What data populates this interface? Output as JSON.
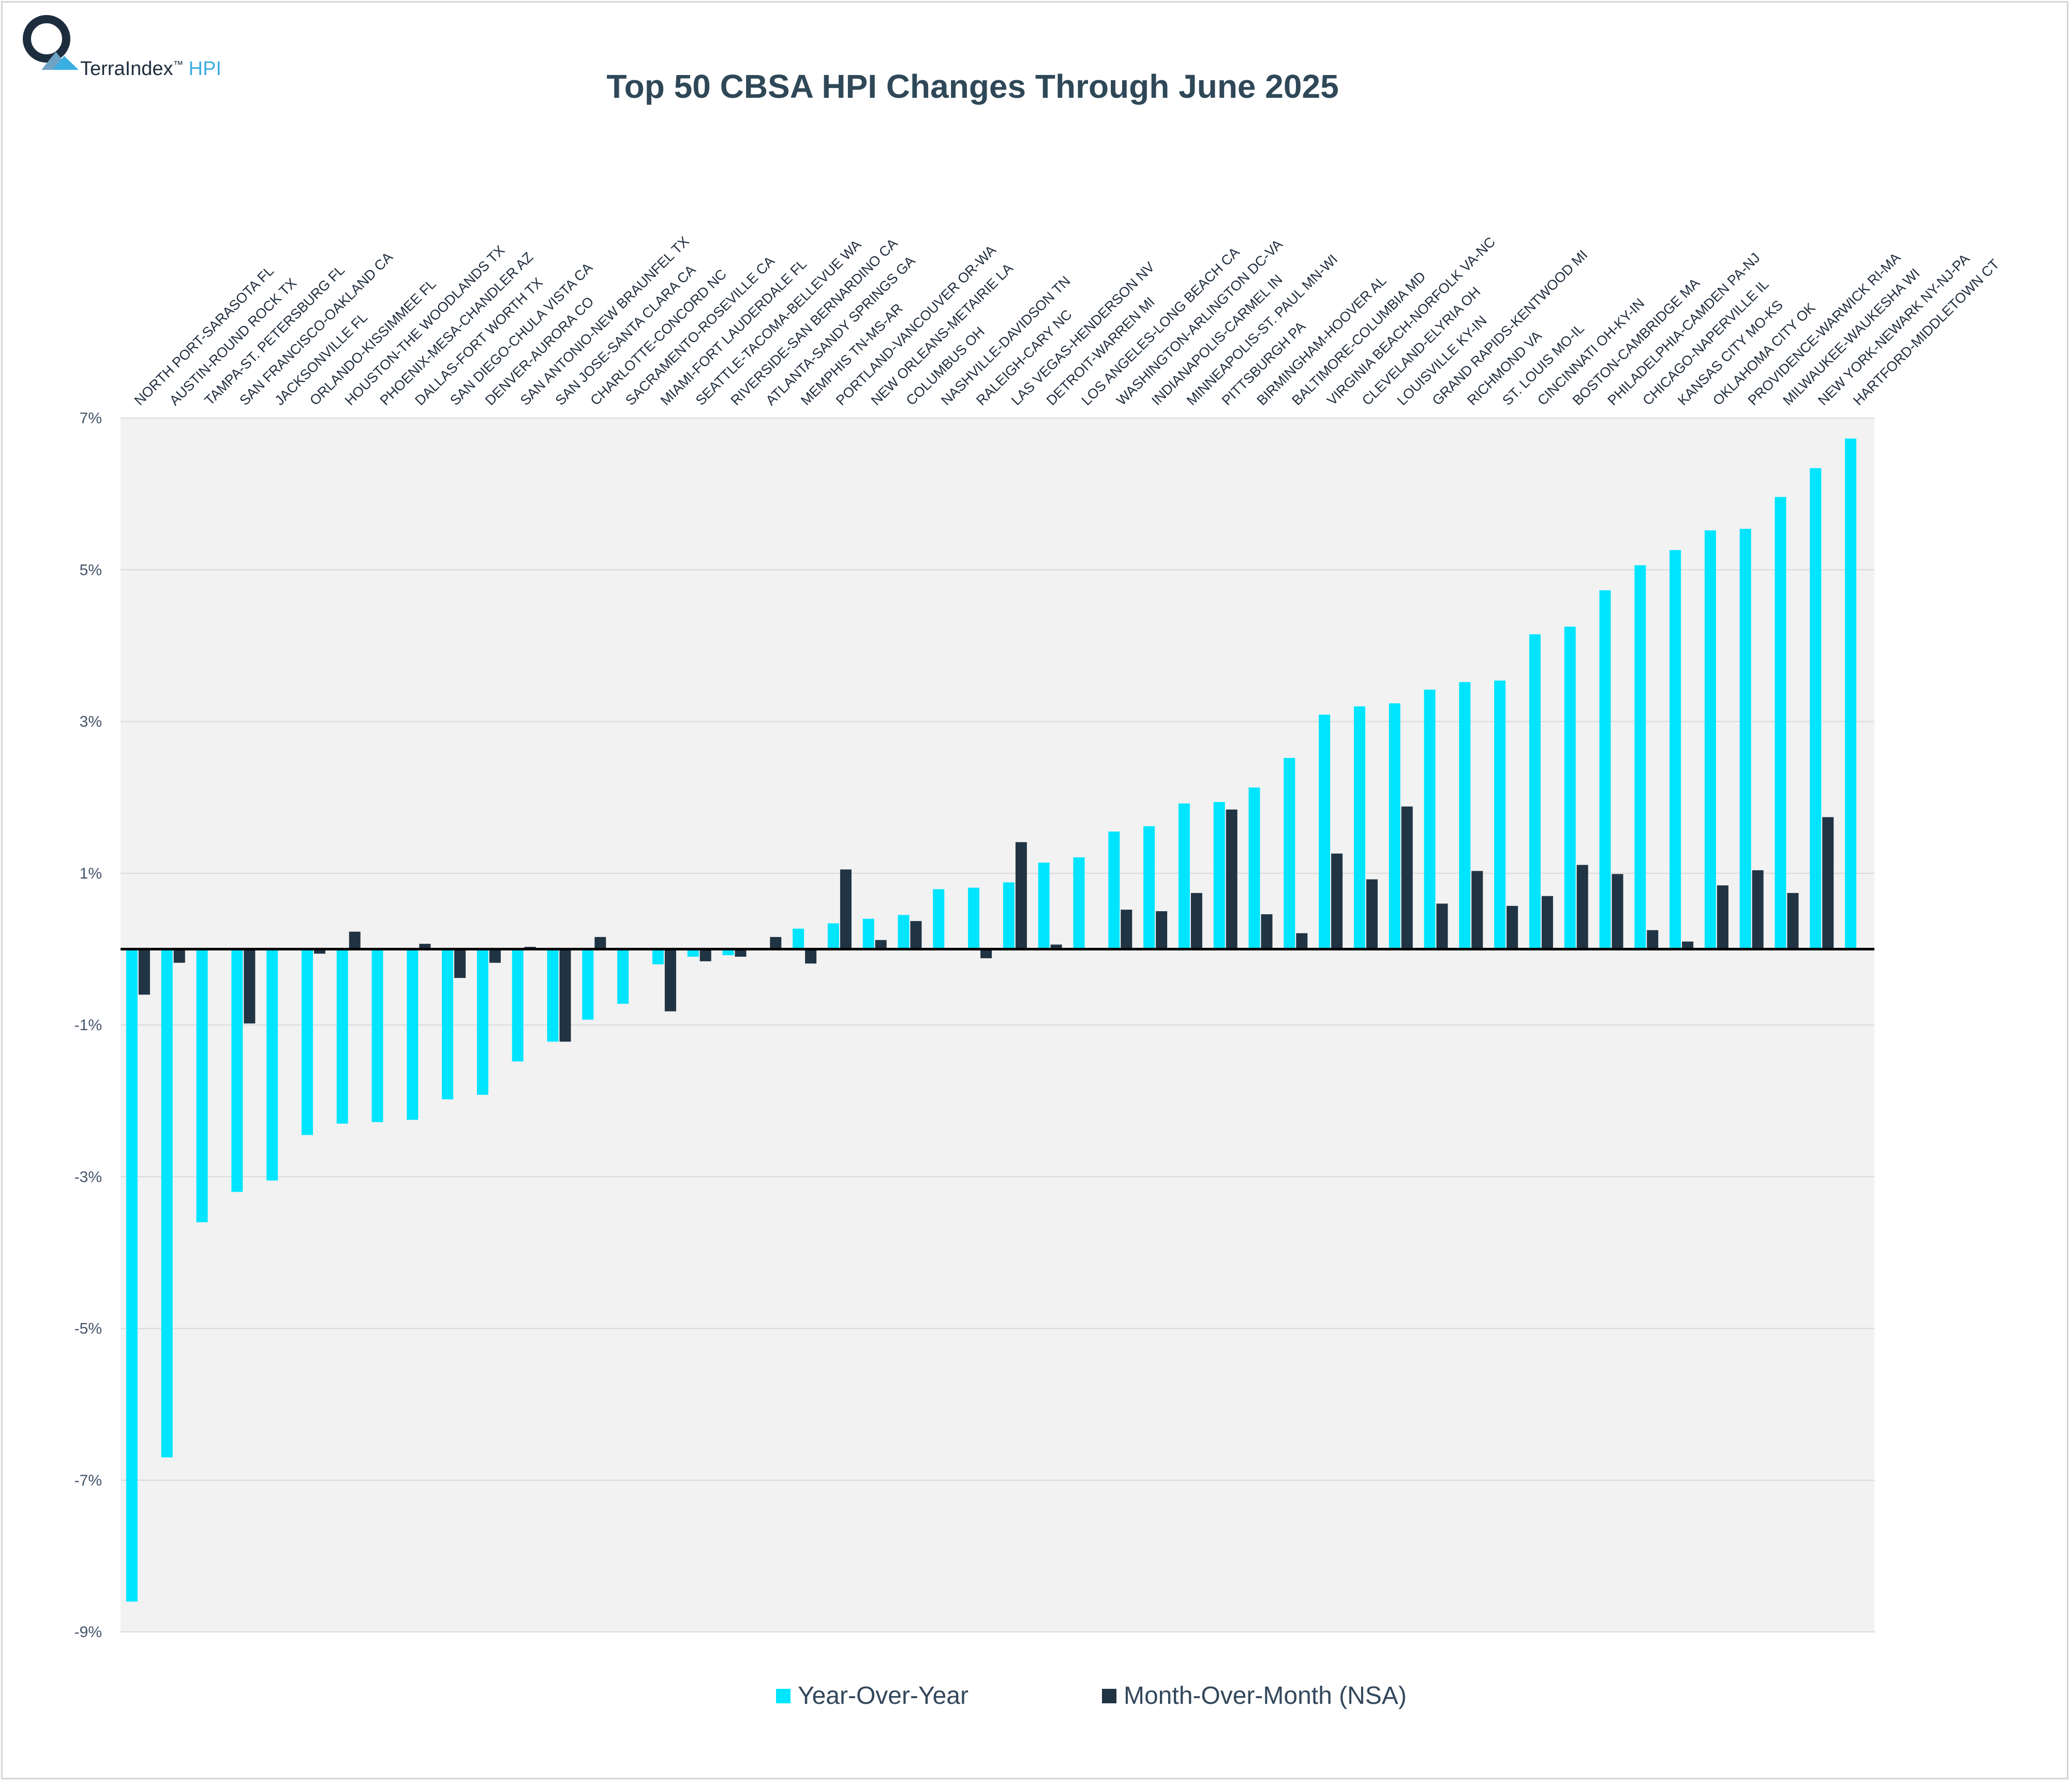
{
  "logo": {
    "brand": "TerraIndex",
    "tm": "™",
    "product": "HPI"
  },
  "colors": {
    "yoy": "#00e5ff",
    "mom": "#213444",
    "plot_bg": "#f2f2f2",
    "grid": "#d9d9d9"
  },
  "chart_data": {
    "type": "bar",
    "title": "Top 50 CBSA HPI Changes Through June 2025",
    "ylim": [
      -9,
      7
    ],
    "yticks": [
      7,
      5,
      3,
      1,
      -1,
      -3,
      -5,
      -7,
      -9
    ],
    "ytick_labels": [
      "7%",
      "5%",
      "3%",
      "1%",
      "-1%",
      "-3%",
      "-5%",
      "-7%",
      "-9%"
    ],
    "grid": true,
    "legend_position": "bottom",
    "categories": [
      "NORTH PORT-SARASOTA FL",
      "AUSTIN-ROUND ROCK TX",
      "TAMPA-ST. PETERSBURG FL",
      "SAN FRANCISCO-OAKLAND CA",
      "JACKSONVILLE FL",
      "ORLANDO-KISSIMMEE FL",
      "HOUSTON-THE WOODLANDS TX",
      "PHOENIX-MESA-CHANDLER AZ",
      "DALLAS-FORT WORTH TX",
      "SAN DIEGO-CHULA VISTA CA",
      "DENVER-AURORA CO",
      "SAN ANTONIO-NEW BRAUNFEL TX",
      "SAN JOSE-SANTA CLARA CA",
      "CHARLOTTE-CONCORD NC",
      "SACRAMENTO-ROSEVILLE CA",
      "MIAMI-FORT LAUDERDALE FL",
      "SEATTLE-TACOMA-BELLEVUE WA",
      "RIVERSIDE-SAN BERNARDINO CA",
      "ATLANTA-SANDY SPRINGS GA",
      "MEMPHIS TN-MS-AR",
      "PORTLAND-VANCOUVER OR-WA",
      "NEW ORLEANS-METAIRIE LA",
      "COLUMBUS OH",
      "NASHVILLE-DAVIDSON TN",
      "RALEIGH-CARY NC",
      "LAS VEGAS-HENDERSON NV",
      "DETROIT-WARREN MI",
      "LOS ANGELES-LONG BEACH CA",
      "WASHINGTON-ARLINGTON DC-VA",
      "INDIANAPOLIS-CARMEL IN",
      "MINNEAPOLIS-ST. PAUL MN-WI",
      "PITTSBURGH PA",
      "BIRMINGHAM-HOOVER AL",
      "BALTIMORE-COLUMBIA MD",
      "VIRGINIA BEACH-NORFOLK VA-NC",
      "CLEVELAND-ELYRIA OH",
      "LOUISVILLE KY-IN",
      "GRAND RAPIDS-KENTWOOD MI",
      "RICHMOND VA",
      "ST. LOUIS MO-IL",
      "CINCINNATI OH-KY-IN",
      "BOSTON-CAMBRIDGE MA",
      "PHILADELPHIA-CAMDEN PA-NJ",
      "CHICAGO-NAPERVILLE IL",
      "KANSAS CITY MO-KS",
      "OKLAHOMA CITY OK",
      "PROVIDENCE-WARWICK RI-MA",
      "MILWAUKEE-WAUKESHA WI",
      "NEW YORK-NEWARK NY-NJ-PA",
      "HARTFORD-MIDDLETOWN CT"
    ],
    "series": [
      {
        "name": "Year-Over-Year",
        "values": [
          -8.6,
          -6.7,
          -3.6,
          -3.2,
          -3.05,
          -2.45,
          -2.3,
          -2.28,
          -2.25,
          -1.98,
          -1.92,
          -1.48,
          -1.22,
          -0.93,
          -0.72,
          -0.2,
          -0.1,
          -0.08,
          0.0,
          0.27,
          0.34,
          0.4,
          0.45,
          0.79,
          0.81,
          0.88,
          1.14,
          1.21,
          1.55,
          1.62,
          1.92,
          1.94,
          2.13,
          2.52,
          3.09,
          3.2,
          3.24,
          3.42,
          3.52,
          3.54,
          4.15,
          4.25,
          4.73,
          5.06,
          5.26,
          5.52,
          5.54,
          5.96,
          6.34,
          6.73
        ]
      },
      {
        "name": "Month-Over-Month (NSA)",
        "values": [
          -0.6,
          -0.18,
          0.0,
          -0.98,
          0.0,
          -0.06,
          0.23,
          0.0,
          0.07,
          -0.38,
          -0.18,
          0.03,
          -1.22,
          0.16,
          0.0,
          -0.82,
          -0.16,
          -0.1,
          0.16,
          -0.19,
          1.05,
          0.12,
          0.37,
          0.0,
          -0.12,
          1.41,
          0.06,
          0.01,
          0.52,
          0.5,
          0.74,
          1.84,
          0.46,
          0.21,
          1.26,
          0.92,
          1.88,
          0.6,
          1.03,
          0.57,
          0.7,
          1.11,
          0.99,
          0.25,
          0.1,
          0.84,
          1.04,
          0.74,
          1.74,
          0.0
        ]
      }
    ]
  }
}
